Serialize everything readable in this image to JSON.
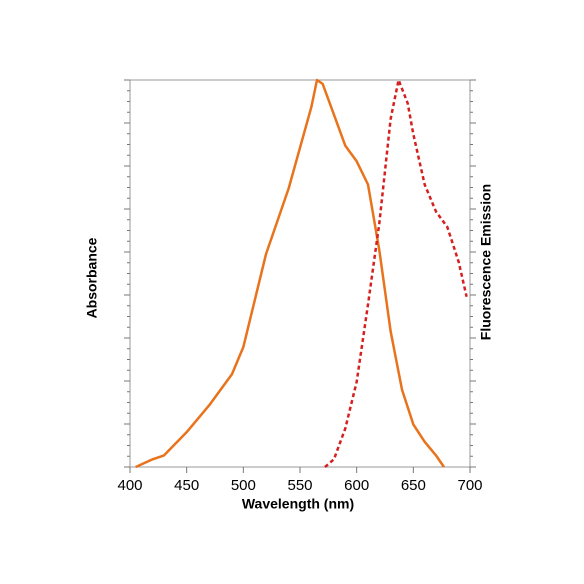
{
  "chart_data": {
    "type": "line",
    "x_label": "Wavelength (nm)",
    "y_label": "Absorbance",
    "y2_label": "Fluorescence Emission",
    "xlim": [
      400,
      700
    ],
    "xticks": [
      400,
      450,
      500,
      550,
      600,
      650,
      700
    ],
    "ylim": [
      0,
      1
    ],
    "series": [
      {
        "color": "#e8731c",
        "line_style": "solid",
        "x": [
          405,
          420,
          430,
          450,
          470,
          490,
          500,
          520,
          540,
          560,
          565,
          570,
          580,
          590,
          600,
          610,
          620,
          630,
          640,
          650,
          660,
          670,
          677
        ],
        "values": [
          0,
          0.02,
          0.03,
          0.09,
          0.16,
          0.24,
          0.31,
          0.55,
          0.72,
          0.93,
          1.0,
          0.99,
          0.91,
          0.83,
          0.79,
          0.73,
          0.56,
          0.35,
          0.2,
          0.11,
          0.065,
          0.03,
          0
        ]
      },
      {
        "color": "#d62020",
        "line_style": "dashed",
        "x": [
          572,
          580,
          590,
          600,
          610,
          620,
          630,
          637,
          645,
          650,
          660,
          670,
          680,
          690,
          697
        ],
        "values": [
          0,
          0.02,
          0.1,
          0.22,
          0.42,
          0.63,
          0.9,
          1.0,
          0.94,
          0.86,
          0.73,
          0.66,
          0.62,
          0.53,
          0.44
        ]
      }
    ]
  }
}
